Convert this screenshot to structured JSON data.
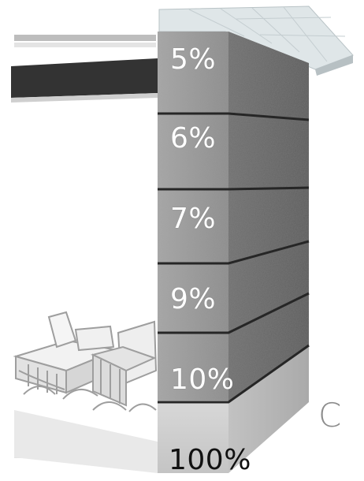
{
  "panel_letter": "C",
  "layers": [
    {
      "label": "5%",
      "fill": "#8a8a8a"
    },
    {
      "label": "6%",
      "fill": "#888888"
    },
    {
      "label": "7%",
      "fill": "#858585"
    },
    {
      "label": "9%",
      "fill": "#7f7f7f"
    },
    {
      "label": "10%",
      "fill": "#777777"
    },
    {
      "label": "100%",
      "fill": "#c9c9c9"
    }
  ],
  "colors": {
    "wall_light": "#9a9a9a",
    "wall_side": "#6a6a6a",
    "base_concrete": "#cfcfcf",
    "divider": "#2b2b2b",
    "glass": "#d8e0e2",
    "beam": "#3a3a3a"
  }
}
